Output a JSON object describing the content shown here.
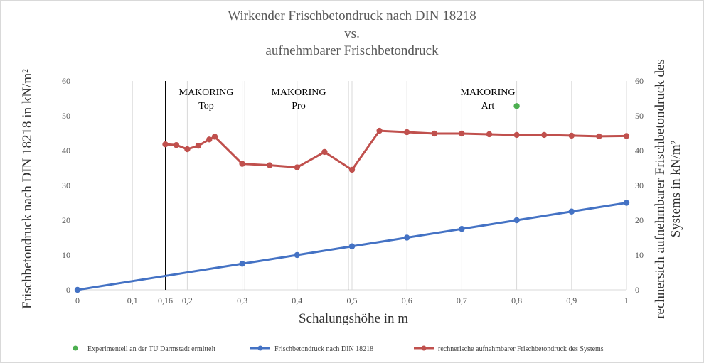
{
  "title_lines": [
    "Wirkender Frischbetondruck nach DIN 18218",
    "vs.",
    "aufnehmbarer Frischbetondruck"
  ],
  "chart_data": {
    "type": "line",
    "title": "Wirkender Frischbetondruck nach DIN 18218 vs. aufnehmbarer Frischbetondruck",
    "xlabel": "Schalungshöhe in m",
    "ylabel": "Frischbetondruck nach DIN 18218 in kN/m²",
    "ylabel_right": "rechnersich aufnehmbarer Frischbetondruck des Systems in kN/m²",
    "xlim": [
      0,
      1
    ],
    "ylim": [
      0,
      60
    ],
    "x_ticks": [
      0,
      0.1,
      0.16,
      0.2,
      0.3,
      0.4,
      0.5,
      0.6,
      0.7,
      0.8,
      0.9,
      1
    ],
    "x_tick_labels": [
      "0",
      "0,1",
      "0,16",
      "0,2",
      "0,3",
      "0,4",
      "0,5",
      "0,6",
      "0,7",
      "0,8",
      "0,9",
      "1"
    ],
    "y_ticks": [
      0,
      10,
      20,
      30,
      40,
      50,
      60
    ],
    "y_tick_labels": [
      "0",
      "10",
      "20",
      "30",
      "40",
      "50",
      "60"
    ],
    "grid": "vertical",
    "legend_position": "bottom",
    "series": [
      {
        "name": "Experimentell an der TU Darmstadt ermittelt",
        "type": "scatter",
        "color": "#4caf50",
        "points": [
          [
            0.8,
            52.8
          ]
        ]
      },
      {
        "name": "Frischbetondruck nach DIN 18218",
        "type": "line",
        "color": "#4472c4",
        "points": [
          [
            0,
            0
          ],
          [
            0.3,
            7.5
          ],
          [
            0.4,
            10
          ],
          [
            0.5,
            12.5
          ],
          [
            0.6,
            15
          ],
          [
            0.7,
            17.5
          ],
          [
            0.8,
            20
          ],
          [
            0.9,
            22.5
          ],
          [
            1.0,
            25
          ]
        ]
      },
      {
        "name": "rechnerische aufnehmbarer Frischbetondruck des Systems",
        "type": "line",
        "color": "#c0504d",
        "points": [
          [
            0.16,
            41.8
          ],
          [
            0.18,
            41.6
          ],
          [
            0.2,
            40.4
          ],
          [
            0.22,
            41.4
          ],
          [
            0.24,
            43.2
          ],
          [
            0.25,
            44
          ],
          [
            0.3,
            36.2
          ],
          [
            0.35,
            35.8
          ],
          [
            0.4,
            35.2
          ],
          [
            0.45,
            39.6
          ],
          [
            0.5,
            34.5
          ],
          [
            0.55,
            45.7
          ],
          [
            0.6,
            45.3
          ],
          [
            0.65,
            44.9
          ],
          [
            0.7,
            44.9
          ],
          [
            0.75,
            44.7
          ],
          [
            0.8,
            44.5
          ],
          [
            0.85,
            44.5
          ],
          [
            0.9,
            44.3
          ],
          [
            0.95,
            44.1
          ],
          [
            1.0,
            44.2
          ]
        ]
      }
    ],
    "zones": [
      {
        "x_start": 0.16,
        "x_end": 0.305,
        "label_line1": "MAKORING",
        "label_line2": "Top"
      },
      {
        "x_start": 0.305,
        "x_end": 0.493,
        "label_line1": "MAKORING",
        "label_line2": "Pro"
      },
      {
        "x_start": 0.493,
        "x_end": 1.0,
        "label_line1": "MAKORING",
        "label_line2": "Art"
      }
    ]
  }
}
